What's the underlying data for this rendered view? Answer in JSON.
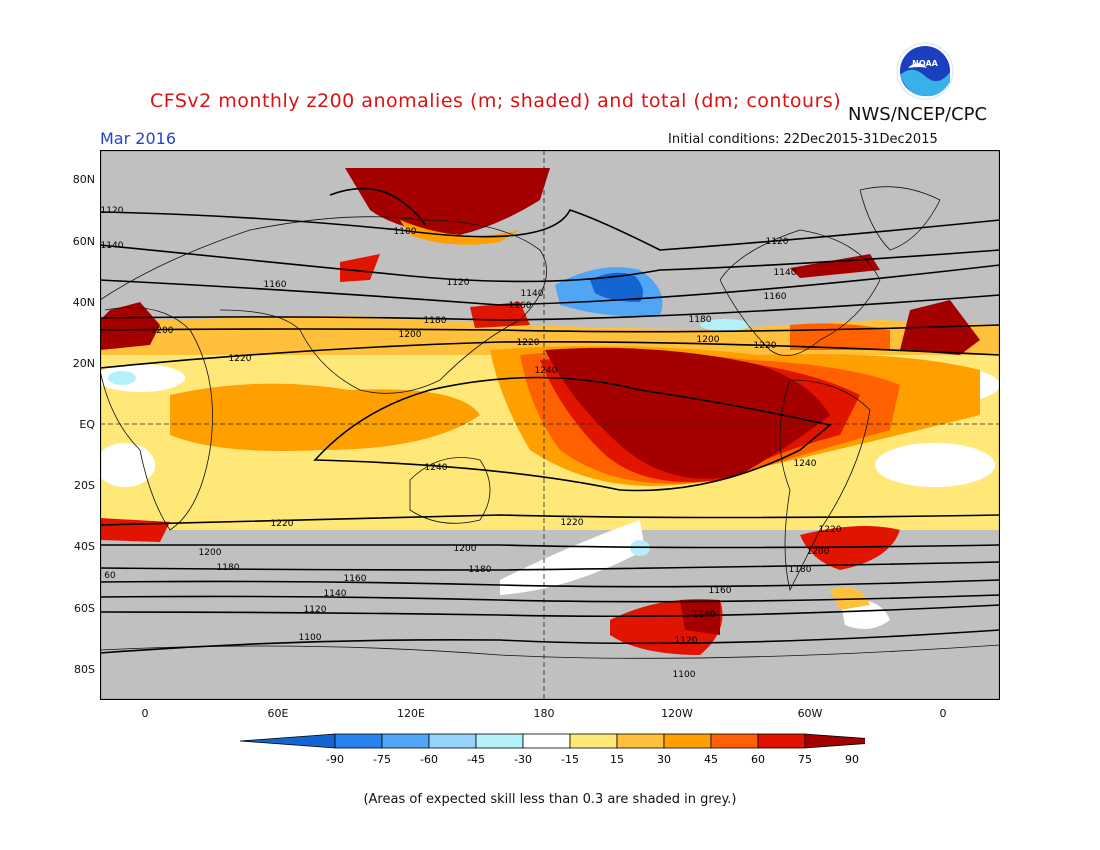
{
  "header": {
    "title": "CFSv2 monthly z200 anomalies (m; shaded) and total (dm; contours)",
    "month": "Mar 2016",
    "initial_conditions": "Initial conditions: 22Dec2015-31Dec2015",
    "agency": "NWS/NCEP/CPC",
    "logo_text": "NOAA"
  },
  "axes": {
    "lat_labels": [
      "80N",
      "60N",
      "40N",
      "20N",
      "EQ",
      "20S",
      "40S",
      "60S",
      "80S"
    ],
    "lon_labels": [
      "0",
      "60E",
      "120E",
      "180",
      "120W",
      "60W",
      "0"
    ]
  },
  "colorbar": {
    "ticks": [
      "-90",
      "-75",
      "-60",
      "-45",
      "-30",
      "-15",
      "15",
      "30",
      "45",
      "60",
      "75",
      "90"
    ],
    "colors": [
      "#1464d2",
      "#2882f0",
      "#50a5f5",
      "#96d2fa",
      "#b4f0fa",
      "#ffffff",
      "#ffe878",
      "#ffc03c",
      "#ffa000",
      "#ff6000",
      "#e11400",
      "#a50000"
    ]
  },
  "contour_labels": {
    "z1100": "1100",
    "z1120": "1120",
    "z1140": "1140",
    "z1160": "1160",
    "z1180": "1180",
    "z1200": "1200",
    "z1220": "1220",
    "z1240": "1240",
    "partial60": "60"
  },
  "footnote": "(Areas of expected skill less than 0.3 are shaded in grey.)",
  "colors": {
    "skill_grey": "#c0c0c0",
    "title_red": "#e01010",
    "month_blue": "#2244cc"
  }
}
